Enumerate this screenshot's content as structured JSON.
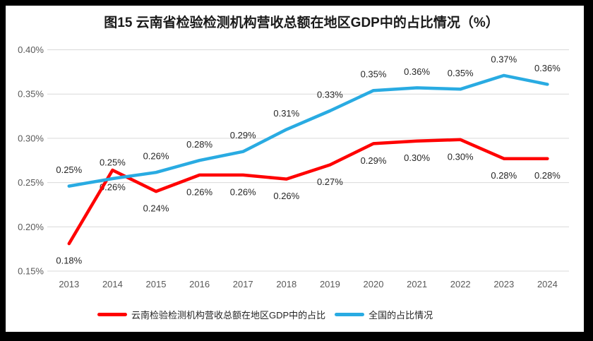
{
  "frame": {
    "border_color": "#000000",
    "chart_background": "#ffffff"
  },
  "chart_data": {
    "type": "line",
    "title": "图15 云南省检验检测机构营收总额在地区GDP中的占比情况（%）",
    "categories": [
      "2013",
      "2014",
      "2015",
      "2016",
      "2017",
      "2018",
      "2019",
      "2020",
      "2021",
      "2022",
      "2023",
      "2024"
    ],
    "series": [
      {
        "name": "云南检验检测机构营收总额在地区GDP中的占比",
        "color": "#ff0000",
        "values": [
          0.18,
          0.26,
          0.24,
          0.26,
          0.26,
          0.26,
          0.27,
          0.29,
          0.3,
          0.3,
          0.28,
          0.28
        ],
        "labels": [
          "0.18%",
          "0.26%",
          "0.24%",
          "0.26%",
          "0.26%",
          "0.26%",
          "0.27%",
          "0.29%",
          "0.30%",
          "0.30%",
          "0.28%",
          "0.28%"
        ],
        "plot_values": [
          0.181,
          0.264,
          0.24,
          0.2585,
          0.2585,
          0.254,
          0.27,
          0.294,
          0.297,
          0.2985,
          0.277,
          0.277
        ],
        "label_position": "below"
      },
      {
        "name": "全国的占比情况",
        "color": "#29abe2",
        "values": [
          0.25,
          0.25,
          0.26,
          0.28,
          0.29,
          0.31,
          0.33,
          0.35,
          0.36,
          0.35,
          0.37,
          0.36
        ],
        "labels": [
          "0.25%",
          "0.25%",
          "0.26%",
          "0.28%",
          "0.29%",
          "0.31%",
          "0.33%",
          "0.35%",
          "0.36%",
          "0.35%",
          "0.37%",
          "0.36%"
        ],
        "plot_values": [
          0.246,
          0.2545,
          0.2615,
          0.275,
          0.285,
          0.31,
          0.331,
          0.354,
          0.357,
          0.3555,
          0.371,
          0.361
        ],
        "label_position": "above"
      }
    ],
    "y_axis": {
      "min": 0.15,
      "max": 0.4,
      "step": 0.05,
      "ticks": [
        "0.40%",
        "0.35%",
        "0.30%",
        "0.25%",
        "0.20%",
        "0.15%"
      ]
    },
    "grid": true,
    "legend_position": "bottom",
    "colors": {
      "grid": "#d9d9d9",
      "tick_text": "#595959",
      "label_text": "#262626"
    }
  }
}
